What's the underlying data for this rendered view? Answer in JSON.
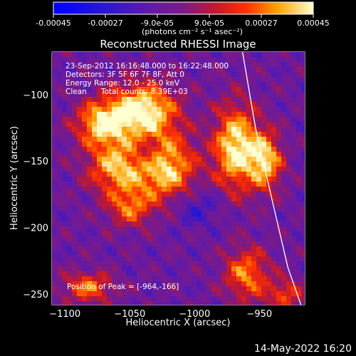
{
  "colorbar": {
    "ticks": [
      "-0.00045",
      "-0.00027",
      "-9.0e-05",
      "9.0e-05",
      "0.00027",
      "0.00045"
    ],
    "unit_label": "(photons cm⁻² s⁻¹ asec⁻²)"
  },
  "chart_data": {
    "type": "heatmap",
    "title": "Reconstructed RHESSI Image",
    "xlabel": "Heliocentric X (arcsec)",
    "ylabel": "Heliocentric Y (arcsec)",
    "xlim": [
      -1110,
      -915
    ],
    "ylim": [
      -258,
      -68
    ],
    "x_ticks": [
      -1100,
      -1050,
      -1000,
      -950
    ],
    "y_ticks": [
      -100,
      -150,
      -200,
      -250
    ],
    "colorbar_range": [
      -0.00045,
      0.00045
    ],
    "colormap": "rhessi",
    "peak_position": [
      -964,
      -166
    ],
    "limb_line": [
      {
        "x": -963,
        "y": -68
      },
      {
        "x": -953,
        "y": -125
      },
      {
        "x": -940,
        "y": -180
      },
      {
        "x": -928,
        "y": -230
      },
      {
        "x": -918,
        "y": -258
      }
    ],
    "sources": [
      {
        "x": -1040,
        "y": -112,
        "sx": 18,
        "sy": 14,
        "a": 1.0
      },
      {
        "x": -1072,
        "y": -122,
        "sx": 14,
        "sy": 12,
        "a": 0.8
      },
      {
        "x": -1060,
        "y": -155,
        "sx": 16,
        "sy": 14,
        "a": 0.75
      },
      {
        "x": -1022,
        "y": -155,
        "sx": 16,
        "sy": 18,
        "a": 0.85
      },
      {
        "x": -1050,
        "y": -185,
        "sx": 12,
        "sy": 10,
        "a": 0.55
      },
      {
        "x": -968,
        "y": -140,
        "sx": 12,
        "sy": 22,
        "a": 0.95
      },
      {
        "x": -945,
        "y": -150,
        "sx": 9,
        "sy": 15,
        "a": 0.8
      },
      {
        "x": -960,
        "y": -235,
        "sx": 12,
        "sy": 14,
        "a": 0.65
      },
      {
        "x": -1082,
        "y": -245,
        "sx": 14,
        "sy": 8,
        "a": 0.6
      },
      {
        "x": -930,
        "y": -250,
        "sx": 10,
        "sy": 8,
        "a": 0.5
      }
    ],
    "holes": [
      {
        "x": -1036,
        "y": -145,
        "sx": 8,
        "sy": 8,
        "a": 0.6
      },
      {
        "x": -1000,
        "y": -185,
        "sx": 14,
        "sy": 10,
        "a": 0.5
      }
    ]
  },
  "annotations": {
    "time_range": "23-Sep-2012 16:16:48.000 to 16:22:48.000",
    "detectors": "Detectors: 3F 5F 6F 7F 8F, Att 0",
    "energy_range": "Energy Range: 12.0 - 25.0 keV",
    "method": "Clean      Total counts: 8.39E+03",
    "peak": "Position of Peak = [-964,-166]"
  },
  "footer": {
    "date": "14-May-2022 16:20"
  }
}
